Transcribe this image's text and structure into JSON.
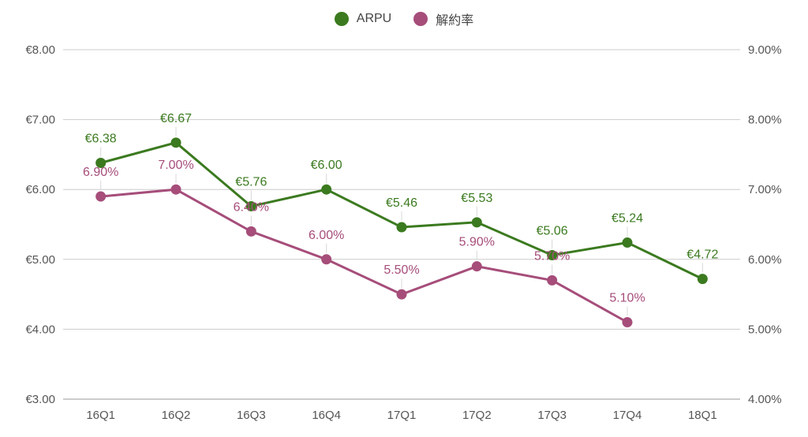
{
  "chart_data": {
    "type": "line",
    "categories": [
      "16Q1",
      "16Q2",
      "16Q3",
      "16Q4",
      "17Q1",
      "17Q2",
      "17Q3",
      "17Q4",
      "18Q1"
    ],
    "series": [
      {
        "name": "ARPU",
        "axis": "left",
        "color": "#3b7a1f",
        "values": [
          6.38,
          6.67,
          5.76,
          6.0,
          5.46,
          5.53,
          5.06,
          5.24,
          4.72
        ],
        "labels": [
          "€6.38",
          "€6.67",
          "€5.76",
          "€6.00",
          "€5.46",
          "€5.53",
          "€5.06",
          "€5.24",
          "€4.72"
        ]
      },
      {
        "name": "解約率",
        "axis": "right",
        "color": "#a64d7a",
        "values": [
          6.9,
          7.0,
          6.4,
          6.0,
          5.5,
          5.9,
          5.7,
          5.1,
          null
        ],
        "labels": [
          "6.90%",
          "7.00%",
          "6.40%",
          "6.00%",
          "5.50%",
          "5.90%",
          "5.70%",
          "5.10%",
          null
        ]
      }
    ],
    "y_left": {
      "min": 3,
      "max": 8,
      "ticks": [
        "€3.00",
        "€4.00",
        "€5.00",
        "€6.00",
        "€7.00",
        "€8.00"
      ]
    },
    "y_right": {
      "min": 4,
      "max": 9,
      "ticks": [
        "4.00%",
        "5.00%",
        "6.00%",
        "7.00%",
        "8.00%",
        "9.00%"
      ]
    },
    "grid": true,
    "legend": "top-center"
  }
}
